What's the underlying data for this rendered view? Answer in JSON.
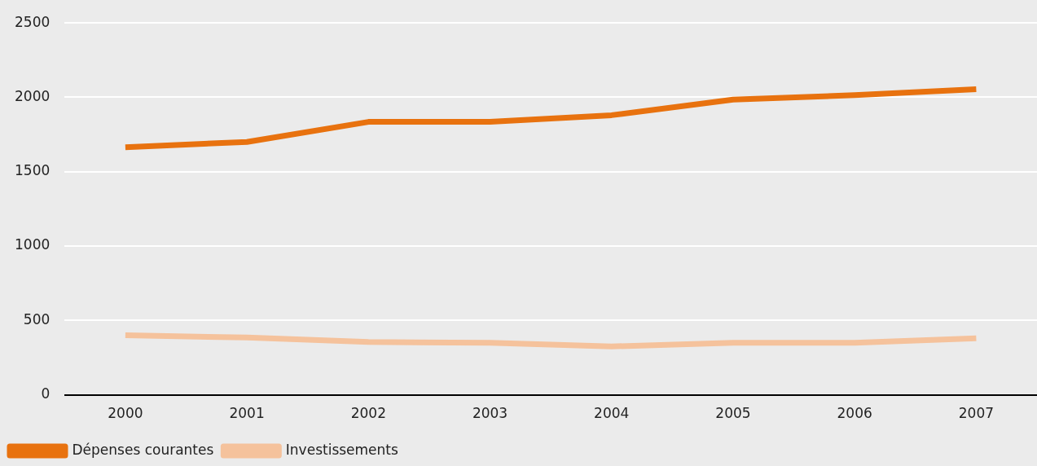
{
  "chart_data": {
    "type": "line",
    "categories": [
      "2000",
      "2001",
      "2002",
      "2003",
      "2004",
      "2005",
      "2006",
      "2007"
    ],
    "series": [
      {
        "name": "Dépenses courantes",
        "color": "#e8720f",
        "values": [
          1665,
          1700,
          1835,
          1835,
          1880,
          1985,
          2015,
          2055
        ]
      },
      {
        "name": "Investissements",
        "color": "#f5c29c",
        "values": [
          400,
          385,
          355,
          350,
          325,
          350,
          350,
          380
        ]
      }
    ],
    "ylim": [
      0,
      2500
    ],
    "yticks": [
      0,
      500,
      1000,
      1500,
      2000,
      2500
    ],
    "grid": "y",
    "legend": "bottom",
    "marker": "none",
    "line_style": "solid"
  }
}
